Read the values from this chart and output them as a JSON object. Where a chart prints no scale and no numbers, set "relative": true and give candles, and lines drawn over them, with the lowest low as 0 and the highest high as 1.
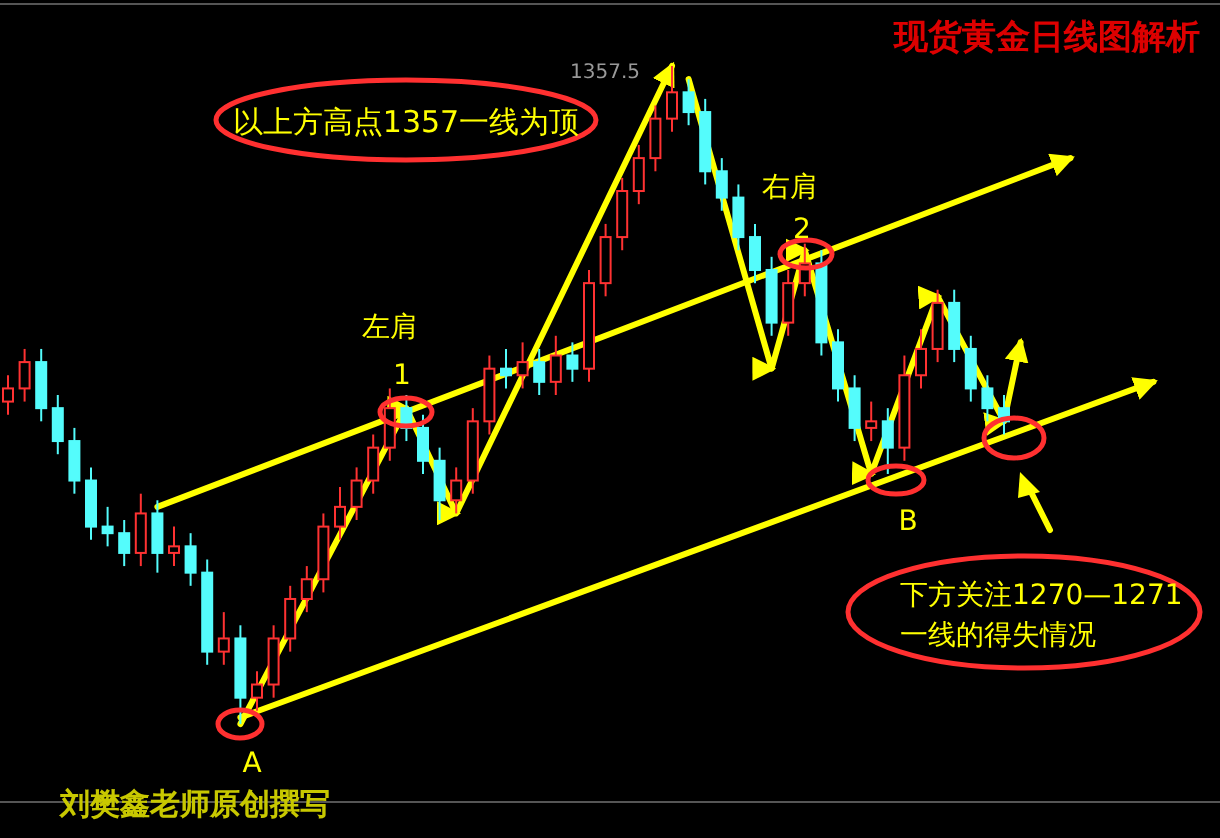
{
  "chart_data": {
    "type": "candlestick",
    "title": "现货黄金日线图解析",
    "relative": true,
    "categories": [
      null,
      null,
      null,
      null,
      null,
      null,
      null,
      null,
      null,
      null,
      null,
      null,
      null,
      null,
      null,
      null,
      null,
      null,
      null,
      null,
      null,
      null,
      null,
      null,
      null,
      null,
      null,
      null,
      null,
      null,
      null,
      null,
      null,
      null,
      null,
      null,
      null,
      null,
      null,
      null,
      null,
      null,
      null,
      null,
      null,
      null,
      null,
      null,
      null,
      null,
      null,
      null,
      null,
      null,
      null,
      null,
      null,
      null,
      null,
      null,
      null,
      null,
      null,
      null,
      null,
      null,
      null,
      null,
      null,
      null,
      null,
      null
    ],
    "ohlc": [
      [
        0.49,
        0.53,
        0.47,
        0.51
      ],
      [
        0.51,
        0.57,
        0.49,
        0.55
      ],
      [
        0.55,
        0.57,
        0.46,
        0.48
      ],
      [
        0.48,
        0.5,
        0.41,
        0.43
      ],
      [
        0.43,
        0.45,
        0.35,
        0.37
      ],
      [
        0.37,
        0.39,
        0.28,
        0.3
      ],
      [
        0.3,
        0.33,
        0.27,
        0.29
      ],
      [
        0.29,
        0.31,
        0.24,
        0.26
      ],
      [
        0.26,
        0.35,
        0.24,
        0.32
      ],
      [
        0.32,
        0.34,
        0.23,
        0.26
      ],
      [
        0.26,
        0.3,
        0.24,
        0.27
      ],
      [
        0.27,
        0.29,
        0.21,
        0.23
      ],
      [
        0.23,
        0.25,
        0.09,
        0.11
      ],
      [
        0.11,
        0.17,
        0.09,
        0.13
      ],
      [
        0.13,
        0.15,
        0,
        0.04
      ],
      [
        0.04,
        0.08,
        0.02,
        0.06
      ],
      [
        0.06,
        0.15,
        0.04,
        0.13
      ],
      [
        0.13,
        0.21,
        0.11,
        0.19
      ],
      [
        0.19,
        0.24,
        0.17,
        0.22
      ],
      [
        0.22,
        0.32,
        0.2,
        0.3
      ],
      [
        0.3,
        0.36,
        0.28,
        0.33
      ],
      [
        0.33,
        0.39,
        0.31,
        0.37
      ],
      [
        0.37,
        0.44,
        0.35,
        0.42
      ],
      [
        0.42,
        0.51,
        0.4,
        0.48
      ],
      [
        0.48,
        0.5,
        0.43,
        0.45
      ],
      [
        0.45,
        0.47,
        0.38,
        0.4
      ],
      [
        0.4,
        0.42,
        0.31,
        0.34
      ],
      [
        0.34,
        0.39,
        0.32,
        0.37
      ],
      [
        0.37,
        0.48,
        0.35,
        0.46
      ],
      [
        0.46,
        0.56,
        0.44,
        0.54
      ],
      [
        0.54,
        0.57,
        0.51,
        0.53
      ],
      [
        0.53,
        0.58,
        0.51,
        0.55
      ],
      [
        0.55,
        0.57,
        0.5,
        0.52
      ],
      [
        0.52,
        0.59,
        0.5,
        0.56
      ],
      [
        0.56,
        0.58,
        0.52,
        0.54
      ],
      [
        0.54,
        0.69,
        0.52,
        0.67
      ],
      [
        0.67,
        0.76,
        0.65,
        0.74
      ],
      [
        0.74,
        0.83,
        0.72,
        0.81
      ],
      [
        0.81,
        0.88,
        0.79,
        0.86
      ],
      [
        0.86,
        0.94,
        0.84,
        0.92
      ],
      [
        0.92,
        1,
        0.9,
        0.96
      ],
      [
        0.96,
        0.98,
        0.91,
        0.93
      ],
      [
        0.93,
        0.95,
        0.82,
        0.84
      ],
      [
        0.84,
        0.86,
        0.78,
        0.8
      ],
      [
        0.8,
        0.82,
        0.72,
        0.74
      ],
      [
        0.74,
        0.76,
        0.67,
        0.69
      ],
      [
        0.69,
        0.71,
        0.59,
        0.61
      ],
      [
        0.61,
        0.69,
        0.59,
        0.67
      ],
      [
        0.67,
        0.73,
        0.65,
        0.7
      ],
      [
        0.7,
        0.72,
        0.56,
        0.58
      ],
      [
        0.58,
        0.6,
        0.49,
        0.51
      ],
      [
        0.51,
        0.53,
        0.43,
        0.45
      ],
      [
        0.45,
        0.49,
        0.43,
        0.46
      ],
      [
        0.46,
        0.48,
        0.38,
        0.42
      ],
      [
        0.42,
        0.56,
        0.4,
        0.53
      ],
      [
        0.53,
        0.6,
        0.51,
        0.57
      ],
      [
        0.57,
        0.66,
        0.55,
        0.64
      ],
      [
        0.64,
        0.66,
        0.55,
        0.57
      ],
      [
        0.57,
        0.59,
        0.49,
        0.51
      ],
      [
        0.51,
        0.53,
        0.46,
        0.48
      ],
      [
        0.48,
        0.5,
        0.44,
        0.46
      ],
      null,
      null,
      null,
      null,
      null,
      null,
      null,
      null,
      null,
      null,
      null
    ],
    "series": [
      {
        "type": "line",
        "color": "#ffff00",
        "values": [
          null,
          null,
          null,
          null,
          null,
          null,
          null,
          null,
          null,
          null,
          null,
          null,
          null,
          null,
          0.01,
          null,
          null,
          null,
          null,
          null,
          null,
          null,
          null,
          null,
          null,
          null,
          null,
          null,
          null,
          null,
          null,
          null,
          null,
          null,
          null,
          null,
          null,
          null,
          null,
          null,
          null,
          null,
          null,
          null,
          null,
          null,
          null,
          null,
          null,
          null,
          null,
          null,
          null,
          null,
          null,
          null,
          null,
          null,
          null,
          null,
          null,
          null,
          null,
          null,
          null,
          null,
          null,
          null,
          null,
          0.52,
          null,
          null
        ]
      },
      {
        "type": "line",
        "color": "#ffff00",
        "values": [
          null,
          null,
          null,
          null,
          null,
          null,
          null,
          null,
          null,
          0.33,
          null,
          null,
          null,
          null,
          null,
          null,
          null,
          null,
          null,
          null,
          null,
          null,
          null,
          null,
          null,
          null,
          null,
          null,
          null,
          null,
          null,
          null,
          null,
          null,
          null,
          null,
          null,
          null,
          null,
          null,
          null,
          null,
          null,
          null,
          null,
          null,
          null,
          null,
          null,
          null,
          null,
          null,
          null,
          null,
          null,
          null,
          null,
          null,
          null,
          null,
          null,
          null,
          null,
          null,
          0.86,
          null,
          null,
          null,
          null,
          null,
          null,
          null
        ]
      },
      {
        "type": "line",
        "color": "#ffff00",
        "values": [
          null,
          null,
          null,
          null,
          null,
          null,
          null,
          null,
          null,
          null,
          null,
          null,
          null,
          null,
          0,
          null,
          null,
          null,
          null,
          null,
          null,
          null,
          null,
          null,
          0.48,
          null,
          null,
          0.32,
          null,
          null,
          null,
          null,
          null,
          null,
          null,
          null,
          null,
          null,
          null,
          null,
          1,
          null,
          null,
          null,
          null,
          null,
          null,
          null,
          null,
          null,
          null,
          null,
          null,
          null,
          null,
          null,
          null,
          null,
          null,
          null,
          null,
          null,
          null,
          null,
          null,
          null,
          null,
          null,
          null,
          null,
          null,
          null
        ]
      },
      {
        "type": "line",
        "color": "#ffff00",
        "values": [
          null,
          null,
          null,
          null,
          null,
          null,
          null,
          null,
          null,
          null,
          null,
          null,
          null,
          null,
          null,
          null,
          null,
          null,
          null,
          null,
          null,
          null,
          null,
          null,
          null,
          null,
          null,
          null,
          null,
          null,
          null,
          null,
          null,
          null,
          null,
          null,
          null,
          null,
          null,
          null,
          null,
          0.98,
          null,
          null,
          null,
          null,
          0.54,
          null,
          0.72,
          null,
          null,
          null,
          0.38,
          null,
          null,
          null,
          0.65,
          null,
          null,
          null,
          0.46,
          0.58,
          null,
          null,
          null,
          null,
          null,
          null,
          null,
          null,
          null,
          null
        ]
      }
    ],
    "annotations": [
      "以上方高点1357一线为顶",
      "左肩",
      "1",
      "右肩",
      "2",
      "A",
      "B",
      "下方关注1270—1271\n一线的得失情况",
      "刘樊鑫老师原创撰写",
      "1357.5"
    ]
  }
}
